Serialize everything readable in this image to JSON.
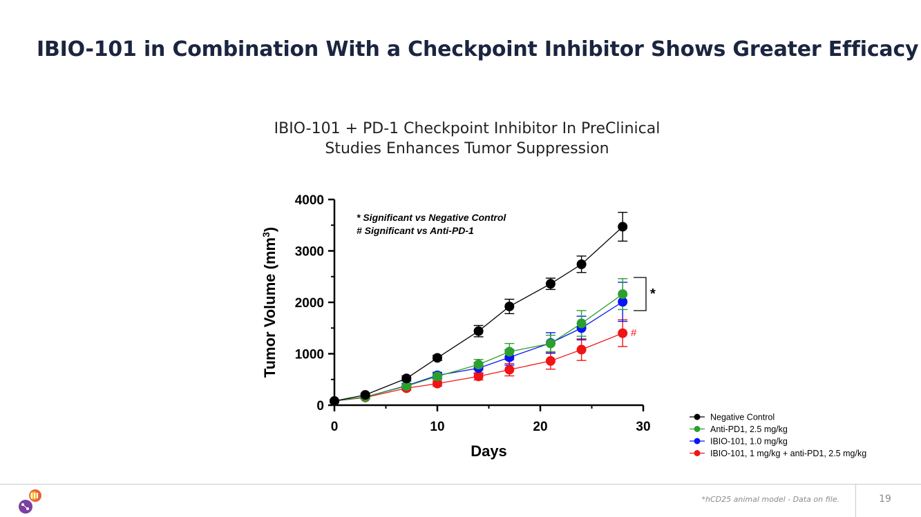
{
  "slide": {
    "title": "IBIO-101 in Combination With a Checkpoint Inhibitor Shows Greater Efficacy",
    "footnote": "*hCD25 animal model - Data on file.",
    "page_number": "19"
  },
  "logo": {
    "icon": "company-logo-icon"
  },
  "chart_data": {
    "type": "line",
    "title": "IBIO-101 + PD-1 Checkpoint Inhibitor In PreClinical Studies Enhances Tumor Suppression",
    "title_lines": [
      "IBIO-101 + PD-1 Checkpoint Inhibitor In PreClinical",
      "Studies Enhances Tumor Suppression"
    ],
    "xlabel": "Days",
    "ylabel_main": "Tumor Volume (mm",
    "ylabel_sup": "3",
    "ylabel_close": ")",
    "xlim": [
      0,
      30
    ],
    "ylim": [
      0,
      4000
    ],
    "xticks": [
      0,
      10,
      20,
      30
    ],
    "xtick_labels": [
      "0",
      "10",
      "20",
      "30"
    ],
    "yticks": [
      0,
      1000,
      2000,
      3000,
      4000
    ],
    "ytick_labels": [
      "0",
      "1000",
      "2000",
      "3000",
      "4000"
    ],
    "grid": false,
    "legend_position": "bottom-right",
    "annotations": {
      "note_1": "* Significant vs Negative Control",
      "note_2": "# Significant vs Anti-PD-1",
      "bracket_label": "*",
      "hash_label": "#"
    },
    "series": [
      {
        "name": "Negative Control",
        "color": "#000000",
        "x": [
          0,
          3,
          7,
          10,
          14,
          17,
          21,
          24,
          28
        ],
        "y": [
          80,
          200,
          520,
          920,
          1440,
          1920,
          2360,
          2740,
          3470
        ],
        "err": [
          20,
          30,
          50,
          50,
          110,
          140,
          110,
          160,
          280
        ]
      },
      {
        "name": "Anti-PD1, 2.5 mg/kg",
        "color": "#2ca02c",
        "x": [
          0,
          3,
          7,
          10,
          14,
          17,
          21,
          24,
          28
        ],
        "y": [
          80,
          160,
          370,
          560,
          790,
          1040,
          1200,
          1590,
          2160
        ],
        "err": [
          20,
          30,
          40,
          60,
          100,
          160,
          160,
          250,
          300
        ]
      },
      {
        "name": "IBIO-101, 1.0 mg/kg",
        "color": "#0a14f5",
        "x": [
          0,
          3,
          7,
          10,
          14,
          17,
          21,
          24,
          28
        ],
        "y": [
          80,
          160,
          380,
          580,
          720,
          930,
          1210,
          1500,
          2010
        ],
        "err": [
          20,
          30,
          40,
          60,
          110,
          150,
          200,
          230,
          380
        ]
      },
      {
        "name": "IBIO-101, 1 mg/kg + anti-PD1, 2.5 mg/kg",
        "color": "#f01414",
        "x": [
          0,
          3,
          7,
          10,
          14,
          17,
          21,
          24,
          28
        ],
        "y": [
          80,
          150,
          330,
          420,
          560,
          690,
          860,
          1080,
          1400
        ],
        "err": [
          20,
          25,
          40,
          50,
          70,
          120,
          160,
          210,
          260
        ]
      }
    ]
  }
}
